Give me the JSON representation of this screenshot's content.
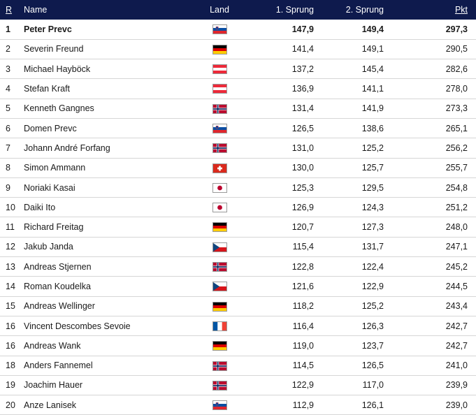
{
  "header": {
    "rank": "R",
    "name": "Name",
    "land": "Land",
    "jump1": "1. Sprung",
    "jump2": "2. Sprung",
    "points": "Pkt"
  },
  "rows": [
    {
      "rank": "1",
      "name": "Peter Prevc",
      "country": "slovenia-flag",
      "jump1": "147,9",
      "jump2": "149,4",
      "points": "297,3"
    },
    {
      "rank": "2",
      "name": "Severin Freund",
      "country": "germany-flag",
      "jump1": "141,4",
      "jump2": "149,1",
      "points": "290,5"
    },
    {
      "rank": "3",
      "name": "Michael Hayböck",
      "country": "austria-flag",
      "jump1": "137,2",
      "jump2": "145,4",
      "points": "282,6"
    },
    {
      "rank": "4",
      "name": "Stefan Kraft",
      "country": "austria-flag",
      "jump1": "136,9",
      "jump2": "141,1",
      "points": "278,0"
    },
    {
      "rank": "5",
      "name": "Kenneth Gangnes",
      "country": "norway-flag",
      "jump1": "131,4",
      "jump2": "141,9",
      "points": "273,3"
    },
    {
      "rank": "6",
      "name": "Domen Prevc",
      "country": "slovenia-flag",
      "jump1": "126,5",
      "jump2": "138,6",
      "points": "265,1"
    },
    {
      "rank": "7",
      "name": "Johann André Forfang",
      "country": "norway-flag",
      "jump1": "131,0",
      "jump2": "125,2",
      "points": "256,2"
    },
    {
      "rank": "8",
      "name": "Simon Ammann",
      "country": "switzerland-flag",
      "jump1": "130,0",
      "jump2": "125,7",
      "points": "255,7"
    },
    {
      "rank": "9",
      "name": "Noriaki Kasai",
      "country": "japan-flag",
      "jump1": "125,3",
      "jump2": "129,5",
      "points": "254,8"
    },
    {
      "rank": "10",
      "name": "Daiki Ito",
      "country": "japan-flag",
      "jump1": "126,9",
      "jump2": "124,3",
      "points": "251,2"
    },
    {
      "rank": "11",
      "name": "Richard Freitag",
      "country": "germany-flag",
      "jump1": "120,7",
      "jump2": "127,3",
      "points": "248,0"
    },
    {
      "rank": "12",
      "name": "Jakub Janda",
      "country": "czechia-flag",
      "jump1": "115,4",
      "jump2": "131,7",
      "points": "247,1"
    },
    {
      "rank": "13",
      "name": "Andreas Stjernen",
      "country": "norway-flag",
      "jump1": "122,8",
      "jump2": "122,4",
      "points": "245,2"
    },
    {
      "rank": "14",
      "name": "Roman Koudelka",
      "country": "czechia-flag",
      "jump1": "121,6",
      "jump2": "122,9",
      "points": "244,5"
    },
    {
      "rank": "15",
      "name": "Andreas Wellinger",
      "country": "germany-flag",
      "jump1": "118,2",
      "jump2": "125,2",
      "points": "243,4"
    },
    {
      "rank": "16",
      "name": "Vincent Descombes Sevoie",
      "country": "france-flag",
      "jump1": "116,4",
      "jump2": "126,3",
      "points": "242,7"
    },
    {
      "rank": "16",
      "name": "Andreas Wank",
      "country": "germany-flag",
      "jump1": "119,0",
      "jump2": "123,7",
      "points": "242,7"
    },
    {
      "rank": "18",
      "name": "Anders Fannemel",
      "country": "norway-flag",
      "jump1": "114,5",
      "jump2": "126,5",
      "points": "241,0"
    },
    {
      "rank": "19",
      "name": "Joachim Hauer",
      "country": "norway-flag",
      "jump1": "122,9",
      "jump2": "117,0",
      "points": "239,9"
    },
    {
      "rank": "20",
      "name": "Anze Lanisek",
      "country": "slovenia-flag",
      "jump1": "112,9",
      "jump2": "126,1",
      "points": "239,0"
    }
  ]
}
